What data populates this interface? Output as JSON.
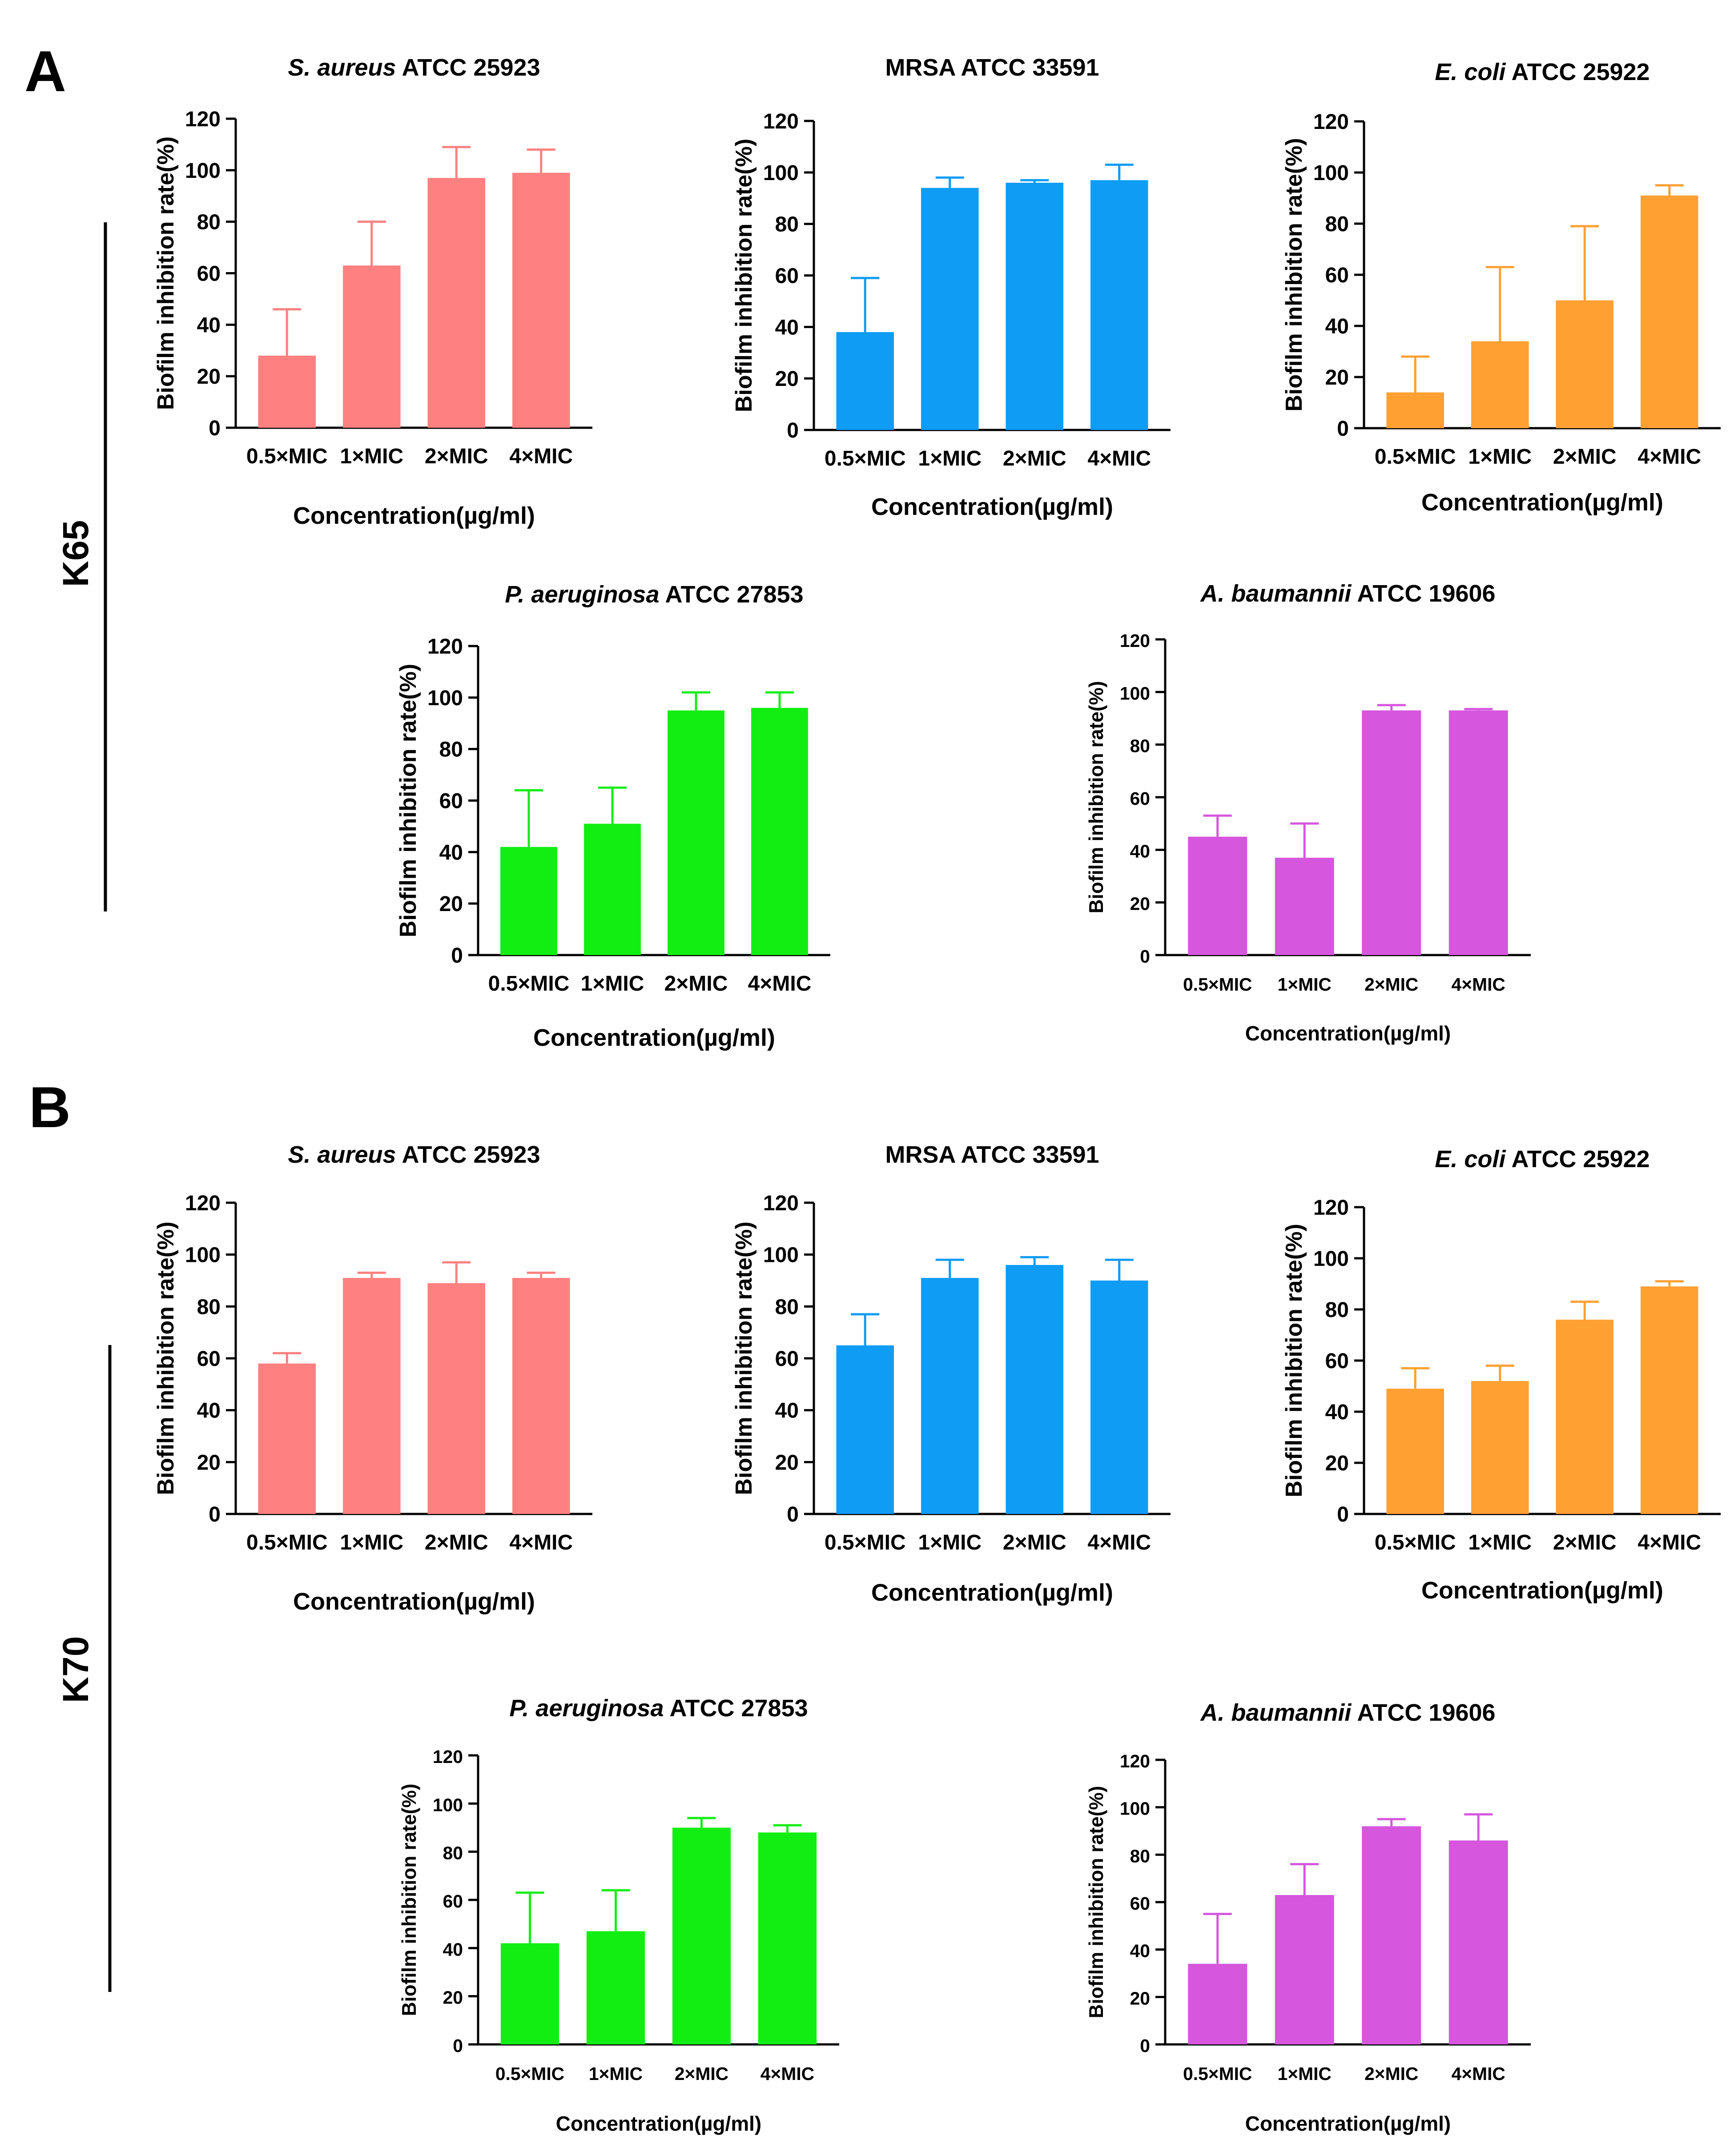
{
  "panels": [
    {
      "letter": "A",
      "group_label": "K65"
    },
    {
      "letter": "B",
      "group_label": "K70"
    }
  ],
  "chart_data": [
    {
      "type": "bar",
      "panel": "A",
      "group": "K65",
      "title_italic": "S. aureus",
      "title_rest": " ATCC 25923",
      "categories": [
        "0.5×MIC",
        "1×MIC",
        "2×MIC",
        "4×MIC"
      ],
      "values": [
        28,
        63,
        97,
        99
      ],
      "errors": [
        18,
        17,
        12,
        9
      ],
      "xlabel": "Concentration(µg/ml)",
      "ylabel": "Biofilm inhibition rate(%)",
      "ylim": [
        0,
        120
      ],
      "yticks": [
        "0",
        "20",
        "40",
        "60",
        "80",
        "100",
        "120"
      ],
      "color": "#ff8080"
    },
    {
      "type": "bar",
      "panel": "A",
      "group": "K65",
      "title_italic": "",
      "title_rest": "MRSA ATCC 33591",
      "categories": [
        "0.5×MIC",
        "1×MIC",
        "2×MIC",
        "4×MIC"
      ],
      "values": [
        38,
        94,
        96,
        97
      ],
      "errors": [
        21,
        4,
        1,
        6
      ],
      "xlabel": "Concentration(µg/ml)",
      "ylabel": "Biofilm inhibition rate(%)",
      "ylim": [
        0,
        120
      ],
      "yticks": [
        "0",
        "20",
        "40",
        "60",
        "80",
        "100",
        "120"
      ],
      "color": "#0f9cf5"
    },
    {
      "type": "bar",
      "panel": "A",
      "group": "K65",
      "title_italic": "E. coli",
      "title_rest": " ATCC 25922",
      "categories": [
        "0.5×MIC",
        "1×MIC",
        "2×MIC",
        "4×MIC"
      ],
      "values": [
        14,
        34,
        50,
        91
      ],
      "errors": [
        14,
        29,
        29,
        4
      ],
      "xlabel": "Concentration(µg/ml)",
      "ylabel": "Biofilm inhibition rate(%)",
      "ylim": [
        0,
        120
      ],
      "yticks": [
        "0",
        "20",
        "40",
        "60",
        "80",
        "100",
        "120"
      ],
      "color": "#ffa033"
    },
    {
      "type": "bar",
      "panel": "A",
      "group": "K65",
      "title_italic": "P. aeruginosa",
      "title_rest": " ATCC 27853",
      "categories": [
        "0.5×MIC",
        "1×MIC",
        "2×MIC",
        "4×MIC"
      ],
      "values": [
        42,
        51,
        95,
        96
      ],
      "errors": [
        22,
        14,
        7,
        6
      ],
      "xlabel": "Concentration(µg/ml)",
      "ylabel": "Biofilm inhibition rate(%)",
      "ylim": [
        0,
        120
      ],
      "yticks": [
        "0",
        "20",
        "40",
        "60",
        "80",
        "100",
        "120"
      ],
      "color": "#12ee12"
    },
    {
      "type": "bar",
      "panel": "A",
      "group": "K65",
      "title_italic": "A. baumannii",
      "title_rest": " ATCC 19606",
      "categories": [
        "0.5×MIC",
        "1×MIC",
        "2×MIC",
        "4×MIC"
      ],
      "values": [
        45,
        37,
        93,
        93
      ],
      "errors": [
        8,
        13,
        2,
        0.5
      ],
      "xlabel": "Concentration(µg/ml)",
      "ylabel": "Biofilm inhibition rate(%)",
      "ylim": [
        0,
        120
      ],
      "yticks": [
        "0",
        "20",
        "40",
        "60",
        "80",
        "100",
        "120"
      ],
      "color": "#d656de"
    },
    {
      "type": "bar",
      "panel": "B",
      "group": "K70",
      "title_italic": "S. aureus",
      "title_rest": " ATCC 25923",
      "categories": [
        "0.5×MIC",
        "1×MIC",
        "2×MIC",
        "4×MIC"
      ],
      "values": [
        58,
        91,
        89,
        91
      ],
      "errors": [
        4,
        2,
        8,
        2
      ],
      "xlabel": "Concentration(µg/ml)",
      "ylabel": "Biofilm inhibition rate(%)",
      "ylim": [
        0,
        120
      ],
      "yticks": [
        "0",
        "20",
        "40",
        "60",
        "80",
        "100",
        "120"
      ],
      "color": "#ff8080"
    },
    {
      "type": "bar",
      "panel": "B",
      "group": "K70",
      "title_italic": "",
      "title_rest": "MRSA ATCC 33591",
      "categories": [
        "0.5×MIC",
        "1×MIC",
        "2×MIC",
        "4×MIC"
      ],
      "values": [
        65,
        91,
        96,
        90
      ],
      "errors": [
        12,
        7,
        3,
        8
      ],
      "xlabel": "Concentration(µg/ml)",
      "ylabel": "Biofilm inhibition rate(%)",
      "ylim": [
        0,
        120
      ],
      "yticks": [
        "0",
        "20",
        "40",
        "60",
        "80",
        "100",
        "120"
      ],
      "color": "#0f9cf5"
    },
    {
      "type": "bar",
      "panel": "B",
      "group": "K70",
      "title_italic": "E. coli",
      "title_rest": " ATCC 25922",
      "categories": [
        "0.5×MIC",
        "1×MIC",
        "2×MIC",
        "4×MIC"
      ],
      "values": [
        49,
        52,
        76,
        89
      ],
      "errors": [
        8,
        6,
        7,
        2
      ],
      "xlabel": "Concentration(µg/ml)",
      "ylabel": "Biofilm inhibition rate(%)",
      "ylim": [
        0,
        120
      ],
      "yticks": [
        "0",
        "20",
        "40",
        "60",
        "80",
        "100",
        "120"
      ],
      "color": "#ffa033"
    },
    {
      "type": "bar",
      "panel": "B",
      "group": "K70",
      "title_italic": "P. aeruginosa",
      "title_rest": " ATCC 27853",
      "categories": [
        "0.5×MIC",
        "1×MIC",
        "2×MIC",
        "4×MIC"
      ],
      "values": [
        42,
        47,
        90,
        88
      ],
      "errors": [
        21,
        17,
        4,
        3
      ],
      "xlabel": "Concentration(µg/ml)",
      "ylabel": "Biofilm inhibition rate(%)",
      "ylim": [
        0,
        120
      ],
      "yticks": [
        "0",
        "20",
        "40",
        "60",
        "80",
        "100",
        "120"
      ],
      "color": "#12ee12"
    },
    {
      "type": "bar",
      "panel": "B",
      "group": "K70",
      "title_italic": "A. baumannii",
      "title_rest": " ATCC 19606",
      "categories": [
        "0.5×MIC",
        "1×MIC",
        "2×MIC",
        "4×MIC"
      ],
      "values": [
        34,
        63,
        92,
        86
      ],
      "errors": [
        21,
        13,
        3,
        11
      ],
      "xlabel": "Concentration(µg/ml)",
      "ylabel": "Biofilm inhibition rate(%)",
      "ylim": [
        0,
        120
      ],
      "yticks": [
        "0",
        "20",
        "40",
        "60",
        "80",
        "100",
        "120"
      ],
      "color": "#d656de"
    }
  ]
}
